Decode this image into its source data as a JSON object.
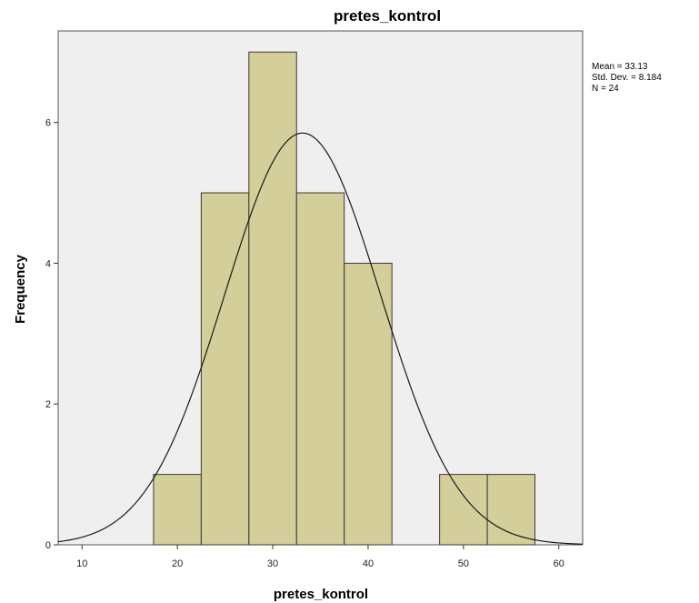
{
  "chart_data": {
    "type": "bar",
    "title": "pretes_kontrol",
    "xlabel": "pretes_kontrol",
    "ylabel": "Frequency",
    "xlim": [
      7.5,
      62.5
    ],
    "ylim": [
      0,
      7.3
    ],
    "x_ticks": [
      10,
      20,
      30,
      40,
      50,
      60
    ],
    "y_ticks": [
      0,
      2,
      4,
      6
    ],
    "bins": [
      {
        "from": 17.5,
        "to": 22.5,
        "count": 1
      },
      {
        "from": 22.5,
        "to": 27.5,
        "count": 5
      },
      {
        "from": 27.5,
        "to": 32.5,
        "count": 7
      },
      {
        "from": 32.5,
        "to": 37.5,
        "count": 5
      },
      {
        "from": 37.5,
        "to": 42.5,
        "count": 4
      },
      {
        "from": 47.5,
        "to": 52.5,
        "count": 1
      },
      {
        "from": 52.5,
        "to": 57.5,
        "count": 1
      }
    ],
    "normal_curve": {
      "mean": 33.13,
      "sd": 8.184,
      "n": 24,
      "bin_width": 5
    },
    "stats": {
      "mean": "Mean = 33.13",
      "sd": "Std. Dev. = 8.184",
      "n": "N = 24"
    },
    "colors": {
      "plot_background": "#efefef",
      "bar_fill": "#d4ce9a",
      "bar_stroke": "#3c3a30",
      "curve": "#1a1a1a"
    },
    "grid": false,
    "legend": "right"
  }
}
